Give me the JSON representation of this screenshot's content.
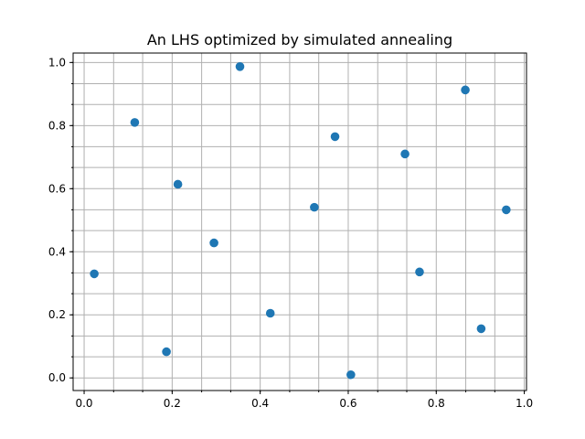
{
  "chart_data": {
    "type": "scatter",
    "title": "An LHS optimized by simulated annealing",
    "xlabel": "",
    "ylabel": "",
    "xlim": [
      -0.025,
      1.005
    ],
    "ylim": [
      -0.04,
      1.03
    ],
    "x_ticks": [
      0.0,
      0.2,
      0.4,
      0.6,
      0.8,
      1.0
    ],
    "x_tick_labels": [
      "0.0",
      "0.2",
      "0.4",
      "0.6",
      "0.8",
      "1.0"
    ],
    "y_ticks": [
      0.0,
      0.2,
      0.4,
      0.6,
      0.8,
      1.0
    ],
    "y_tick_labels": [
      "0.0",
      "0.2",
      "0.4",
      "0.6",
      "0.8",
      "1.0"
    ],
    "x_grid": [
      0.0,
      0.067,
      0.133,
      0.2,
      0.267,
      0.333,
      0.4,
      0.467,
      0.533,
      0.6,
      0.667,
      0.733,
      0.8,
      0.867,
      0.933,
      1.0
    ],
    "y_grid": [
      0.0,
      0.067,
      0.133,
      0.2,
      0.267,
      0.333,
      0.4,
      0.467,
      0.533,
      0.6,
      0.667,
      0.733,
      0.8,
      0.867,
      0.933,
      1.0
    ],
    "grid": true,
    "marker_color": "#1f77b4",
    "points": [
      {
        "x": 0.023,
        "y": 0.33
      },
      {
        "x": 0.115,
        "y": 0.81
      },
      {
        "x": 0.187,
        "y": 0.083
      },
      {
        "x": 0.213,
        "y": 0.614
      },
      {
        "x": 0.295,
        "y": 0.428
      },
      {
        "x": 0.354,
        "y": 0.987
      },
      {
        "x": 0.423,
        "y": 0.205
      },
      {
        "x": 0.523,
        "y": 0.541
      },
      {
        "x": 0.57,
        "y": 0.765
      },
      {
        "x": 0.606,
        "y": 0.01
      },
      {
        "x": 0.729,
        "y": 0.71
      },
      {
        "x": 0.762,
        "y": 0.336
      },
      {
        "x": 0.866,
        "y": 0.913
      },
      {
        "x": 0.902,
        "y": 0.156
      },
      {
        "x": 0.959,
        "y": 0.533
      }
    ]
  }
}
